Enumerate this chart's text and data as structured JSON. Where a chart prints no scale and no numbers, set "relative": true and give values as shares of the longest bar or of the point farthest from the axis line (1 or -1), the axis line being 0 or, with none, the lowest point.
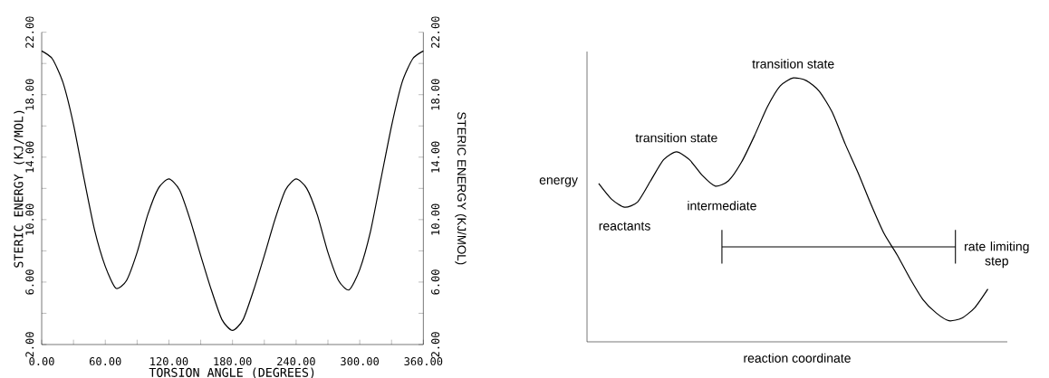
{
  "chart_data": [
    {
      "type": "line",
      "xlabel": "TORSION ANGLE (DEGREES)",
      "ylabel": "STERIC ENERGY (KJ/MOL)",
      "y2label": "STERIC ENERGY (KJ/MOL)",
      "color": "#000000",
      "x": [
        0,
        10,
        20,
        30,
        40,
        50,
        60,
        70,
        80,
        90,
        100,
        110,
        120,
        130,
        140,
        150,
        160,
        170,
        180,
        190,
        200,
        210,
        220,
        230,
        240,
        250,
        260,
        270,
        280,
        290,
        300,
        310,
        320,
        330,
        340,
        350,
        360
      ],
      "values": [
        20.8,
        20.3,
        18.8,
        16.1,
        12.6,
        9.3,
        7.0,
        5.6,
        6.1,
        7.9,
        10.3,
        12.0,
        12.6,
        11.9,
        10.0,
        7.7,
        5.5,
        3.6,
        2.9,
        3.6,
        5.5,
        7.7,
        10.0,
        11.9,
        12.6,
        12.0,
        10.3,
        7.9,
        6.1,
        5.5,
        6.8,
        9.2,
        12.6,
        16.0,
        18.8,
        20.3,
        20.8
      ],
      "xlim": [
        0,
        360
      ],
      "xticks": [
        {
          "value": 0,
          "label": "0.00"
        },
        {
          "value": 30,
          "label": null
        },
        {
          "value": 60,
          "label": "60.00"
        },
        {
          "value": 90,
          "label": null
        },
        {
          "value": 120,
          "label": "120.00"
        },
        {
          "value": 150,
          "label": null
        },
        {
          "value": 180,
          "label": "180.00"
        },
        {
          "value": 210,
          "label": null
        },
        {
          "value": 240,
          "label": "240.00"
        },
        {
          "value": 270,
          "label": null
        },
        {
          "value": 300,
          "label": "300.00"
        },
        {
          "value": 330,
          "label": null
        },
        {
          "value": 360,
          "label": "360.00"
        }
      ],
      "ylim": [
        2,
        22
      ],
      "yticks": [
        {
          "value": 2,
          "label": "2.00"
        },
        {
          "value": 4,
          "label": null
        },
        {
          "value": 6,
          "label": "6.00"
        },
        {
          "value": 8,
          "label": null
        },
        {
          "value": 10,
          "label": "10.00"
        },
        {
          "value": 12,
          "label": null
        },
        {
          "value": 14,
          "label": "14.00"
        },
        {
          "value": 16,
          "label": null
        },
        {
          "value": 18,
          "label": "18.00"
        },
        {
          "value": 20,
          "label": null
        },
        {
          "value": 22,
          "label": "22.00"
        }
      ],
      "y2lim": [
        2,
        22
      ],
      "y2ticks": [
        {
          "value": 2,
          "label": "2.00"
        },
        {
          "value": 4,
          "label": null
        },
        {
          "value": 6,
          "label": "6.00"
        },
        {
          "value": 8,
          "label": null
        },
        {
          "value": 10,
          "label": "10.00"
        },
        {
          "value": 12,
          "label": null
        },
        {
          "value": 14,
          "label": "14.00"
        },
        {
          "value": 16,
          "label": null
        },
        {
          "value": 18,
          "label": "18.00"
        },
        {
          "value": 20,
          "label": null
        },
        {
          "value": 22,
          "label": "22.00"
        }
      ]
    },
    {
      "type": "line",
      "relative": true,
      "xlabel": "reaction coordinate",
      "ylabel": "energy",
      "color": "#000000",
      "categories": [
        null,
        null,
        null,
        null,
        null,
        null,
        null,
        null,
        null,
        null,
        null,
        null,
        null,
        null,
        null,
        null,
        null,
        null,
        null,
        null,
        null,
        null,
        null,
        null,
        null,
        null,
        null,
        null,
        null,
        null,
        null
      ],
      "values": [
        0.6,
        0.54,
        0.51,
        0.53,
        0.61,
        0.69,
        0.72,
        0.69,
        0.63,
        0.59,
        0.61,
        0.68,
        0.78,
        0.89,
        0.97,
        1.0,
        0.99,
        0.95,
        0.87,
        0.75,
        0.64,
        0.52,
        0.41,
        0.33,
        0.24,
        0.16,
        0.11,
        0.08,
        0.09,
        0.13,
        0.2
      ],
      "annotations": [
        "transition state",
        "reactants",
        "transition state",
        "intermediate",
        "rate limiting step"
      ]
    }
  ]
}
